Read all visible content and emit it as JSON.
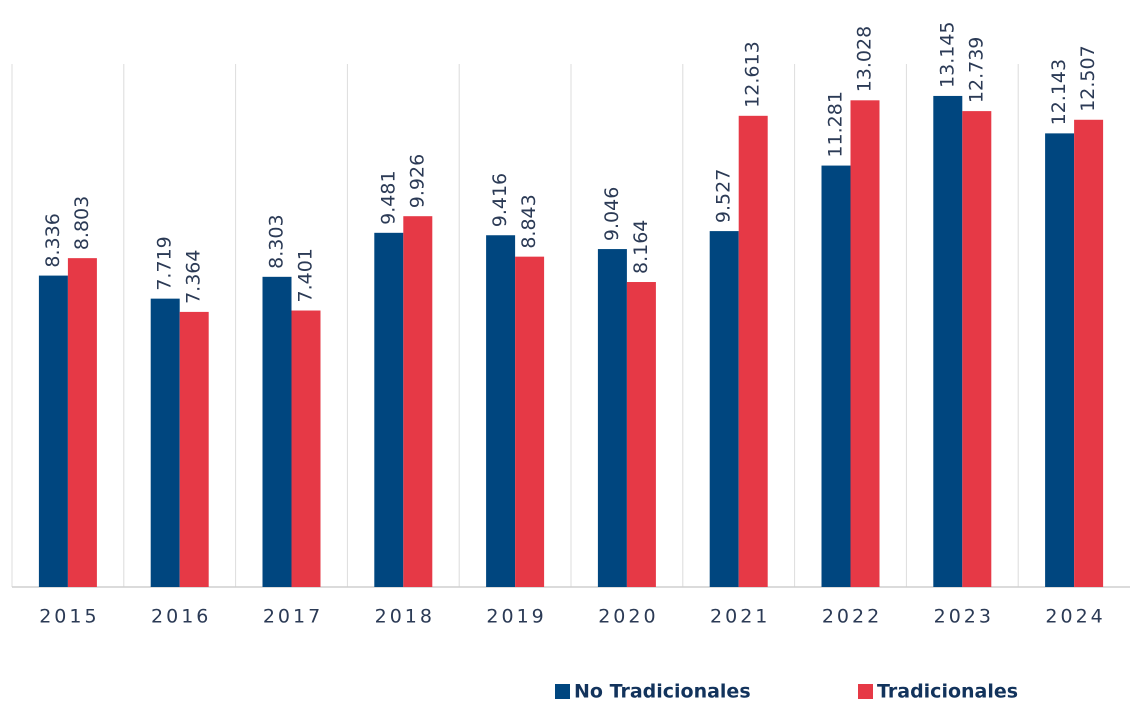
{
  "chart_data": {
    "type": "bar",
    "categories": [
      "2015",
      "2016",
      "2017",
      "2018",
      "2019",
      "2020",
      "2021",
      "2022",
      "2023",
      "2024"
    ],
    "series": [
      {
        "name": "No Tradicionales",
        "color": "#00467f",
        "values": [
          8.336,
          7.719,
          8.303,
          9.481,
          9.416,
          9.046,
          9.527,
          11.281,
          13.145,
          12.143
        ]
      },
      {
        "name": "Tradicionales",
        "color": "#e63946",
        "values": [
          8.803,
          7.364,
          7.401,
          9.926,
          8.843,
          8.164,
          12.613,
          13.028,
          12.739,
          12.507
        ]
      }
    ],
    "ylim": [
      0,
      14
    ],
    "legend": "bottom"
  }
}
